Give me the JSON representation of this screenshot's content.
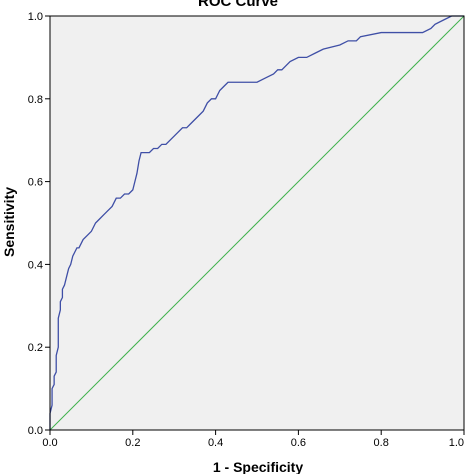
{
  "chart_data": {
    "type": "line",
    "title": "ROC Curve",
    "xlabel": "1 - Specificity",
    "ylabel": "Sensitivity",
    "xlim": [
      0.0,
      1.0
    ],
    "ylim": [
      0.0,
      1.0
    ],
    "xticks": [
      "0.0",
      "0.2",
      "0.4",
      "0.6",
      "0.8",
      "1.0"
    ],
    "yticks": [
      "0.0",
      "0.2",
      "0.4",
      "0.6",
      "0.8",
      "1.0"
    ],
    "grid": false,
    "legend": "none",
    "colors": {
      "plot_background": "#f0f0f0",
      "roc_curve": "#3f4fa6",
      "reference_line": "#3fb14c"
    },
    "series": [
      {
        "x": [
          0.0,
          0.0,
          0.005,
          0.005,
          0.01,
          0.01,
          0.015,
          0.015,
          0.02,
          0.02,
          0.025,
          0.025,
          0.03,
          0.03,
          0.035,
          0.04,
          0.045,
          0.05,
          0.055,
          0.06,
          0.065,
          0.07,
          0.075,
          0.08,
          0.09,
          0.1,
          0.11,
          0.12,
          0.13,
          0.14,
          0.15,
          0.16,
          0.17,
          0.18,
          0.19,
          0.2,
          0.205,
          0.21,
          0.215,
          0.22,
          0.23,
          0.24,
          0.25,
          0.26,
          0.27,
          0.28,
          0.29,
          0.3,
          0.31,
          0.32,
          0.33,
          0.34,
          0.35,
          0.36,
          0.37,
          0.38,
          0.39,
          0.4,
          0.41,
          0.42,
          0.43,
          0.44,
          0.46,
          0.5,
          0.52,
          0.54,
          0.55,
          0.56,
          0.57,
          0.58,
          0.6,
          0.62,
          0.64,
          0.66,
          0.7,
          0.72,
          0.74,
          0.75,
          0.8,
          0.85,
          0.9,
          0.92,
          0.93,
          0.95,
          0.97,
          1.0
        ],
        "y": [
          0.0,
          0.04,
          0.06,
          0.1,
          0.11,
          0.13,
          0.14,
          0.18,
          0.2,
          0.27,
          0.29,
          0.31,
          0.32,
          0.34,
          0.35,
          0.37,
          0.39,
          0.4,
          0.42,
          0.43,
          0.44,
          0.44,
          0.45,
          0.46,
          0.47,
          0.48,
          0.5,
          0.51,
          0.52,
          0.53,
          0.54,
          0.56,
          0.56,
          0.57,
          0.57,
          0.58,
          0.6,
          0.62,
          0.65,
          0.67,
          0.67,
          0.67,
          0.68,
          0.68,
          0.69,
          0.69,
          0.7,
          0.71,
          0.72,
          0.73,
          0.73,
          0.74,
          0.75,
          0.76,
          0.77,
          0.79,
          0.8,
          0.8,
          0.82,
          0.83,
          0.84,
          0.84,
          0.84,
          0.84,
          0.85,
          0.86,
          0.87,
          0.87,
          0.88,
          0.89,
          0.9,
          0.9,
          0.91,
          0.92,
          0.93,
          0.94,
          0.94,
          0.95,
          0.96,
          0.96,
          0.96,
          0.97,
          0.98,
          0.99,
          1.0,
          1.0
        ]
      },
      {
        "x": [
          0.0,
          1.0
        ],
        "y": [
          0.0,
          1.0
        ]
      }
    ]
  }
}
